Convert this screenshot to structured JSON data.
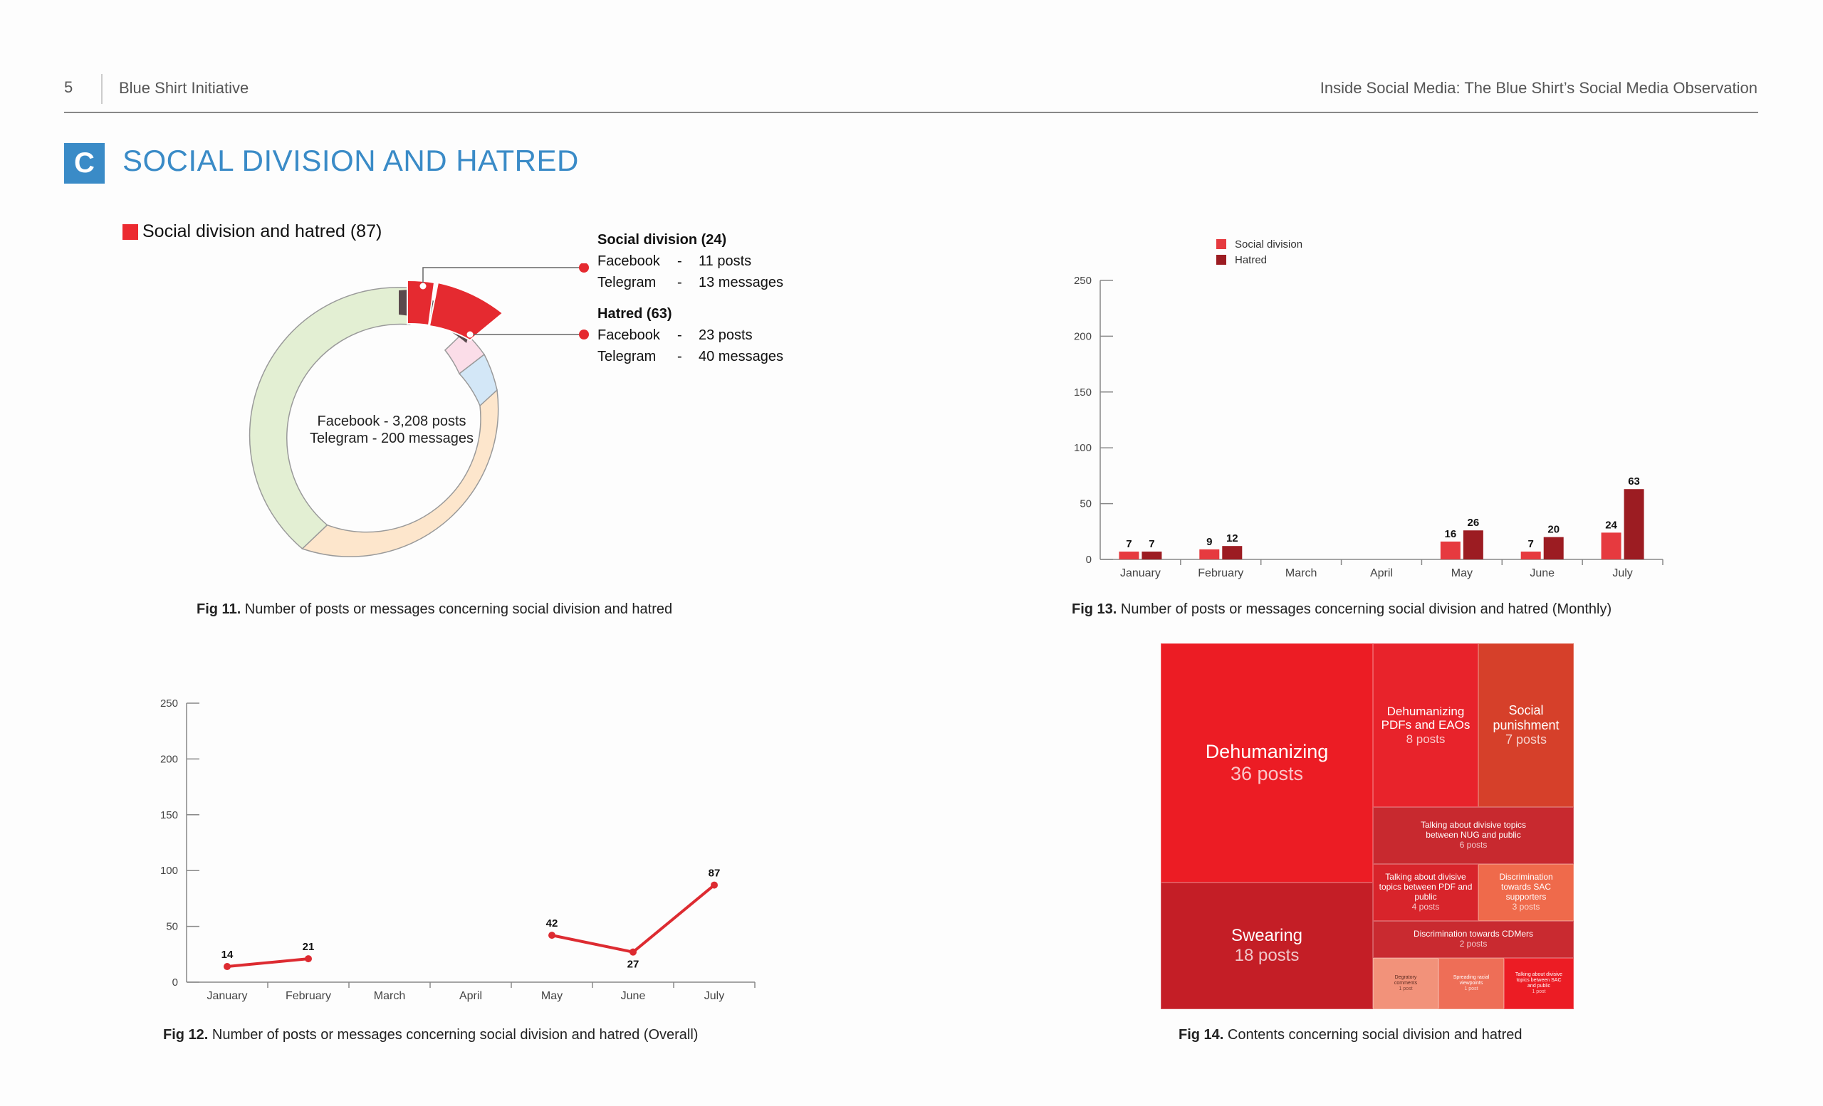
{
  "header": {
    "page_number": "5",
    "org": "Blue Shirt Initiative",
    "report_title": "Inside Social Media: The Blue Shirt’s Social Media Observation"
  },
  "section": {
    "letter": "C",
    "title": "SOCIAL DIVISION AND HATRED"
  },
  "colors": {
    "accent_blue": "#3a8bc7",
    "social_division": "#e63a3f",
    "hatred": "#9c1c22",
    "line": "#dd2b31"
  },
  "fig11": {
    "legend": "Social division and hatred (87)",
    "center_line1": "Facebook - 3,208 posts",
    "center_line2": "Telegram - 200 messages",
    "social_division": {
      "title": "Social division (24)",
      "r1_label": "Facebook",
      "r1_dash": "-",
      "r1_value": "11 posts",
      "r2_label": "Telegram",
      "r2_dash": "-",
      "r2_value": "13 messages"
    },
    "hatred": {
      "title": "Hatred (63)",
      "r1_label": "Facebook",
      "r1_dash": "-",
      "r1_value": "23 posts",
      "r2_label": "Telegram",
      "r2_dash": "-",
      "r2_value": "40 messages"
    },
    "caption_bold": "Fig 11.",
    "caption": " Number of posts or messages concerning social division and hatred"
  },
  "fig12": {
    "caption_bold": "Fig 12.",
    "caption": " Number of posts or messages concerning social division and hatred (Overall)"
  },
  "fig13": {
    "caption_bold": "Fig 13.",
    "caption": " Number of posts or messages concerning social division and hatred (Monthly)"
  },
  "fig14": {
    "caption_bold": "Fig 14.",
    "caption": " Contents concerning social division and hatred"
  },
  "chart_data": [
    {
      "id": "fig11",
      "type": "pie",
      "title": "Social division and hatred (87)",
      "slices": [
        {
          "name": "Social division",
          "value": 24,
          "color": "#e52a30"
        },
        {
          "name": "Hatred",
          "value": 63,
          "color": "#e52a30"
        }
      ]
    },
    {
      "id": "fig12",
      "type": "line",
      "categories": [
        "January",
        "February",
        "March",
        "April",
        "May",
        "June",
        "July"
      ],
      "series": [
        {
          "values": [
            14,
            21,
            null,
            null,
            42,
            27,
            87
          ]
        }
      ],
      "ylim": [
        0,
        250
      ],
      "yticks": [
        0,
        50,
        100,
        150,
        200,
        250
      ]
    },
    {
      "id": "fig13",
      "type": "bar",
      "categories": [
        "January",
        "February",
        "March",
        "April",
        "May",
        "June",
        "July"
      ],
      "series": [
        {
          "name": "Social division",
          "values": [
            7,
            9,
            null,
            null,
            16,
            7,
            24
          ]
        },
        {
          "name": "Hatred",
          "values": [
            7,
            12,
            null,
            null,
            26,
            20,
            63
          ]
        }
      ],
      "ylim": [
        0,
        250
      ],
      "yticks": [
        0,
        50,
        100,
        150,
        200,
        250
      ],
      "legend": "top-left"
    },
    {
      "id": "fig14",
      "type": "treemap",
      "items": [
        {
          "label": "Dehumanizing",
          "value": "36 posts",
          "color": "#ec1c24"
        },
        {
          "label": "Swearing",
          "value": "18 posts",
          "color": "#c41e26"
        },
        {
          "label": "Dehumanizing PDFs and EAOs",
          "value": "8 posts",
          "color": "#e8232b"
        },
        {
          "label": "Social punishment",
          "value": "7 posts",
          "color": "#d6402a"
        },
        {
          "label": "Talking about divisive topics between NUG and public",
          "value": "6 posts",
          "color": "#c8292f"
        },
        {
          "label": "Talking about divisive topics between PDF and public",
          "value": "4 posts",
          "color": "#d8242b"
        },
        {
          "label": "Discrimination towards SAC supporters",
          "value": "3 posts",
          "color": "#ef6a4b"
        },
        {
          "label": "Discrimination towards CDMers",
          "value": "2 posts",
          "color": "#c92a30"
        },
        {
          "label": "Degratory comments",
          "value": "1 post",
          "color": "#f2927a"
        },
        {
          "label": "Spreading racial viewpoints",
          "value": "1 post",
          "color": "#ee6e57"
        },
        {
          "label": "Talking about divisive topics between SAC and public",
          "value": "1 post",
          "color": "#ec1c24"
        }
      ]
    }
  ]
}
